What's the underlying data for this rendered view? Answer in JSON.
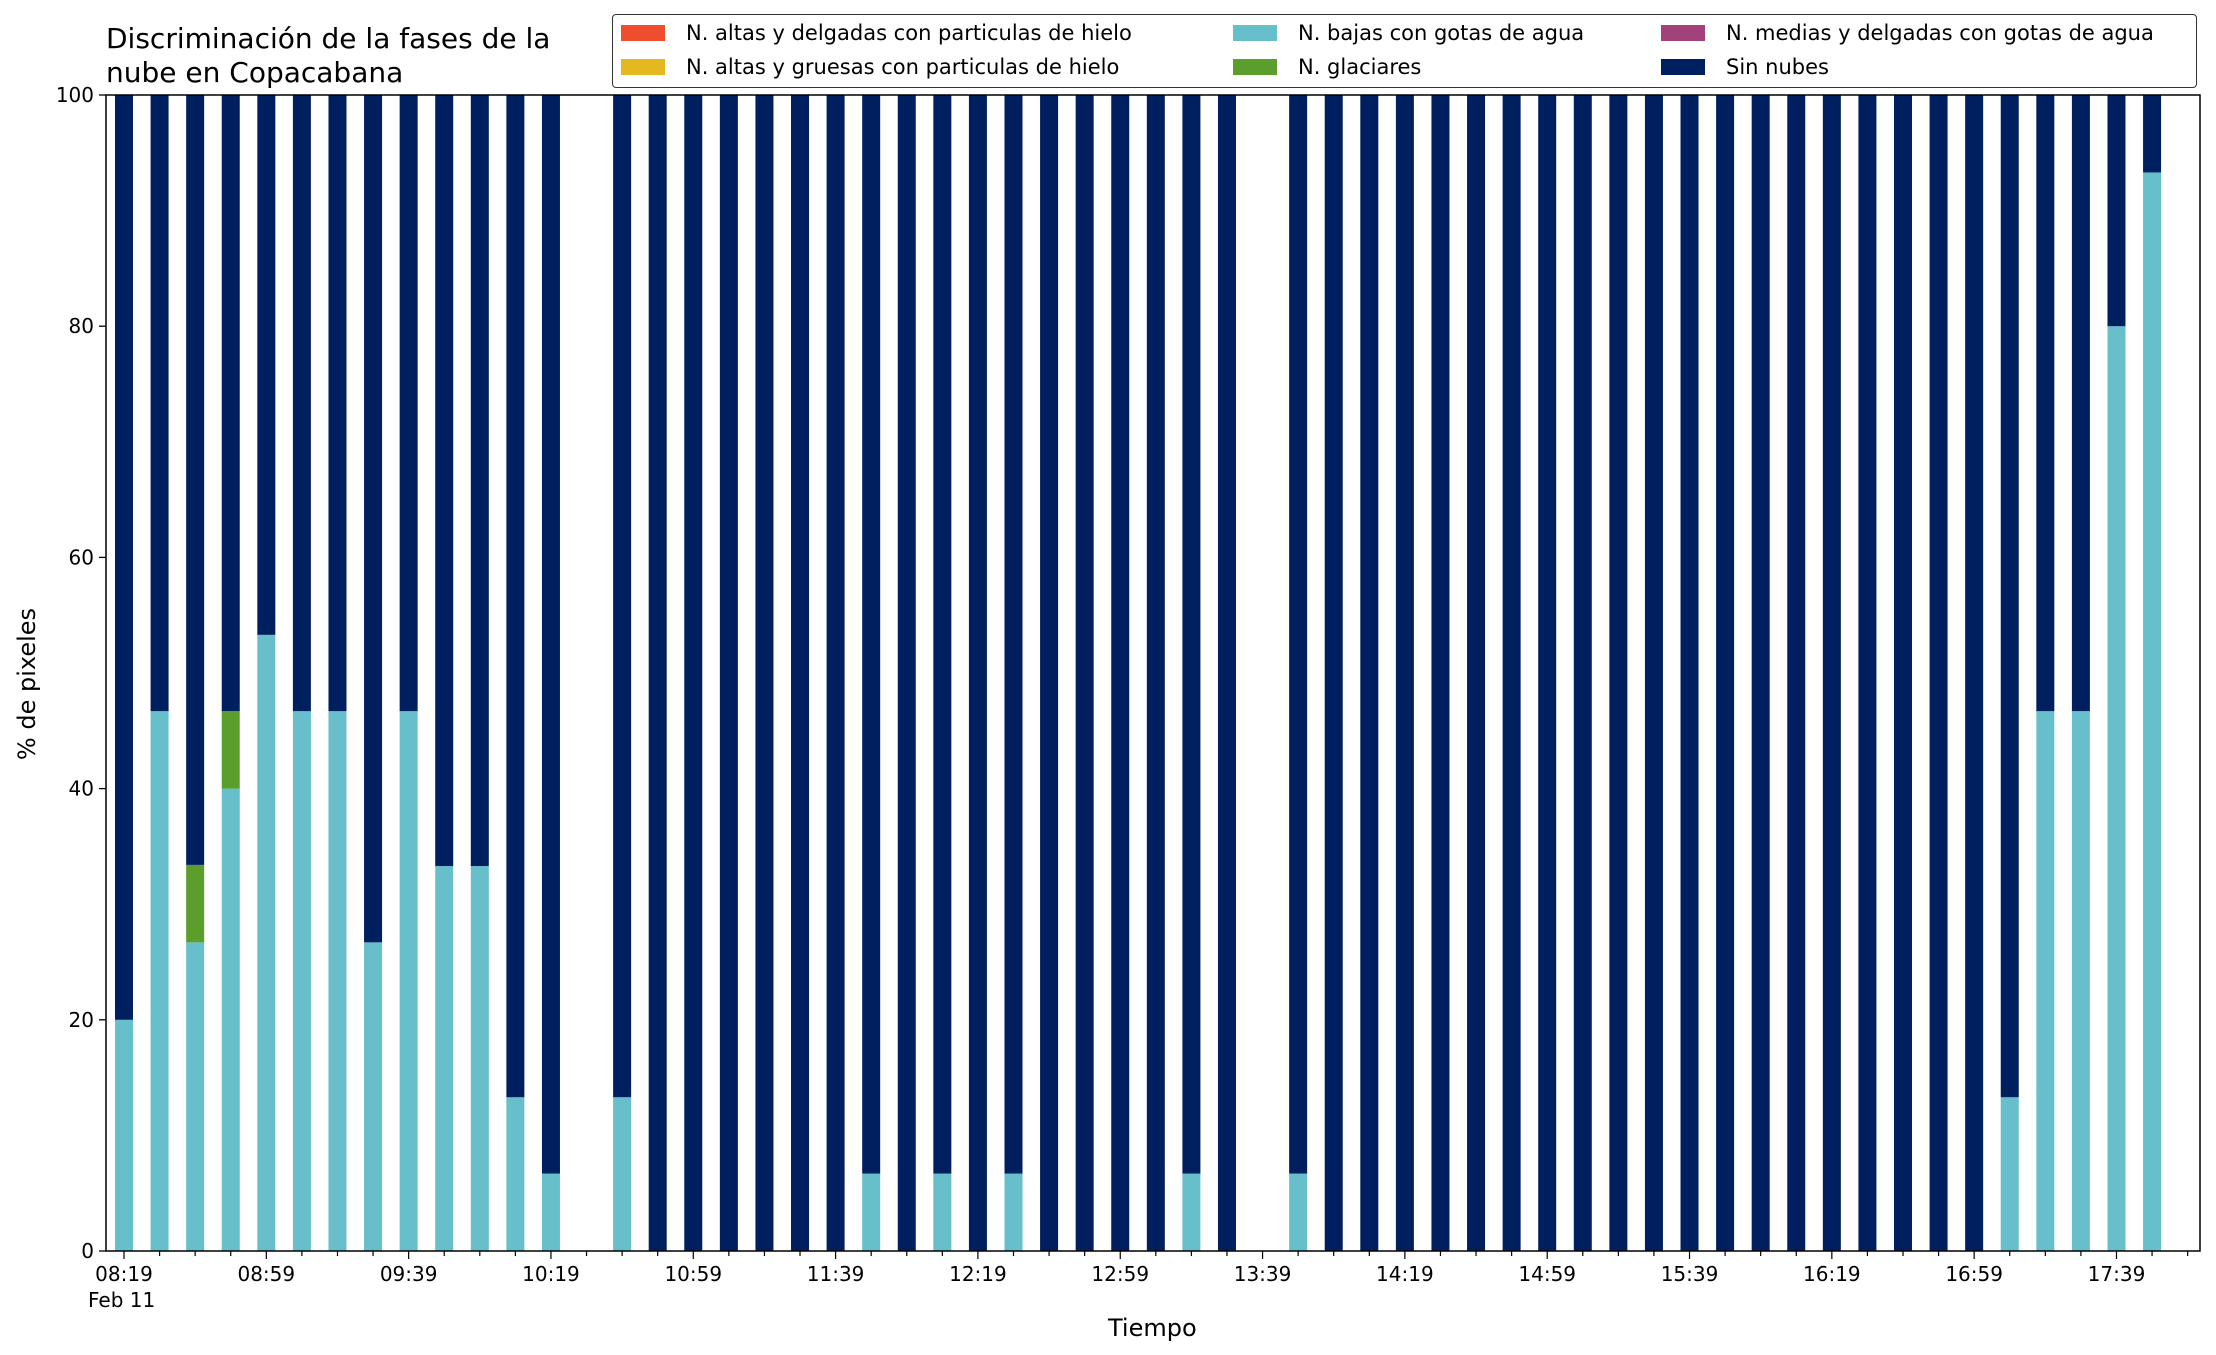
{
  "chart_data": {
    "type": "bar",
    "stacked": true,
    "title": "Discriminación de la fases de la\nnube en Copacabana",
    "xlabel": "Tiempo",
    "ylabel": "% de pixeles",
    "ylim": [
      0,
      100
    ],
    "yticks": [
      0,
      20,
      40,
      60,
      80,
      100
    ],
    "grid": false,
    "legend_position": "top-right",
    "date_label": "Feb 11",
    "xtick_labels": [
      "08:19",
      "08:59",
      "09:39",
      "10:19",
      "10:59",
      "11:39",
      "12:19",
      "12:59",
      "13:39",
      "14:19",
      "14:59",
      "15:39",
      "16:19",
      "16:59",
      "17:39"
    ],
    "categories": [
      "08:19",
      "08:29",
      "08:39",
      "08:49",
      "08:59",
      "09:09",
      "09:19",
      "09:29",
      "09:39",
      "09:49",
      "09:59",
      "10:09",
      "10:19",
      "10:29",
      "10:39",
      "10:49",
      "10:59",
      "11:09",
      "11:19",
      "11:29",
      "11:39",
      "11:49",
      "11:59",
      "12:09",
      "12:19",
      "12:29",
      "12:39",
      "12:49",
      "12:59",
      "13:09",
      "13:19",
      "13:29",
      "13:39",
      "13:49",
      "13:59",
      "14:09",
      "14:19",
      "14:29",
      "14:39",
      "14:49",
      "14:59",
      "15:09",
      "15:19",
      "15:29",
      "15:39",
      "15:49",
      "15:59",
      "16:09",
      "16:19",
      "16:29",
      "16:39",
      "16:49",
      "16:59",
      "17:09",
      "17:19",
      "17:29",
      "17:39",
      "17:49"
    ],
    "series": [
      {
        "name": "N. altas y delgadas con particulas de hielo",
        "color": "#ee4e2e",
        "values": [
          0,
          0,
          0,
          0,
          0,
          0,
          0,
          0,
          0,
          0,
          0,
          0,
          0,
          null,
          0,
          0,
          0,
          0,
          0,
          0,
          0,
          0,
          0,
          0,
          0,
          0,
          0,
          0,
          0,
          0,
          0,
          0,
          null,
          0,
          0,
          0,
          0,
          0,
          0,
          0,
          0,
          0,
          0,
          0,
          0,
          0,
          0,
          0,
          0,
          0,
          0,
          0,
          0,
          0,
          0,
          0,
          0,
          0
        ]
      },
      {
        "name": "N. altas y gruesas con particulas de hielo",
        "color": "#e6b81f",
        "values": [
          0,
          0,
          0,
          0,
          0,
          0,
          0,
          0,
          0,
          0,
          0,
          0,
          0,
          null,
          0,
          0,
          0,
          0,
          0,
          0,
          0,
          0,
          0,
          0,
          0,
          0,
          0,
          0,
          0,
          0,
          0,
          0,
          null,
          0,
          0,
          0,
          0,
          0,
          0,
          0,
          0,
          0,
          0,
          0,
          0,
          0,
          0,
          0,
          0,
          0,
          0,
          0,
          0,
          0,
          0,
          0,
          0,
          0
        ]
      },
      {
        "name": "N. bajas con gotas de agua",
        "color": "#66bfca",
        "values": [
          20,
          46.7,
          26.7,
          40,
          53.3,
          46.7,
          46.7,
          26.7,
          46.7,
          33.3,
          33.3,
          13.3,
          6.7,
          null,
          13.3,
          0,
          0,
          0,
          0,
          0,
          0,
          6.7,
          0,
          6.7,
          0,
          6.7,
          0,
          0,
          0,
          0,
          6.7,
          0,
          null,
          6.7,
          0,
          0,
          0,
          0,
          0,
          0,
          0,
          0,
          0,
          0,
          0,
          0,
          0,
          0,
          0,
          0,
          0,
          0,
          0,
          13.3,
          46.7,
          46.7,
          80,
          93.3
        ]
      },
      {
        "name": "N. glaciares",
        "color": "#5b9e2c",
        "values": [
          0,
          0,
          6.7,
          6.7,
          0,
          0,
          0,
          0,
          0,
          0,
          0,
          0,
          0,
          null,
          0,
          0,
          0,
          0,
          0,
          0,
          0,
          0,
          0,
          0,
          0,
          0,
          0,
          0,
          0,
          0,
          0,
          0,
          null,
          0,
          0,
          0,
          0,
          0,
          0,
          0,
          0,
          0,
          0,
          0,
          0,
          0,
          0,
          0,
          0,
          0,
          0,
          0,
          0,
          0,
          0,
          0,
          0,
          0
        ]
      },
      {
        "name": "N. medias y delgadas con gotas de agua",
        "color": "#a3427a",
        "values": [
          0,
          0,
          0,
          0,
          0,
          0,
          0,
          0,
          0,
          0,
          0,
          0,
          0,
          null,
          0,
          0,
          0,
          0,
          0,
          0,
          0,
          0,
          0,
          0,
          0,
          0,
          0,
          0,
          0,
          0,
          0,
          0,
          null,
          0,
          0,
          0,
          0,
          0,
          0,
          0,
          0,
          0,
          0,
          0,
          0,
          0,
          0,
          0,
          0,
          0,
          0,
          0,
          0,
          0,
          0,
          0,
          0,
          0
        ]
      },
      {
        "name": "Sin nubes",
        "color": "#001f5f",
        "values": [
          80,
          53.3,
          66.6,
          53.3,
          46.7,
          53.3,
          53.3,
          73.3,
          53.3,
          66.7,
          66.7,
          86.7,
          93.3,
          null,
          86.7,
          100,
          100,
          100,
          100,
          100,
          100,
          93.3,
          100,
          93.3,
          100,
          93.3,
          100,
          100,
          100,
          100,
          93.3,
          100,
          null,
          93.3,
          100,
          100,
          100,
          100,
          100,
          100,
          100,
          100,
          100,
          100,
          100,
          100,
          100,
          100,
          100,
          100,
          100,
          100,
          100,
          86.7,
          53.3,
          53.3,
          20,
          6.7
        ]
      }
    ]
  }
}
